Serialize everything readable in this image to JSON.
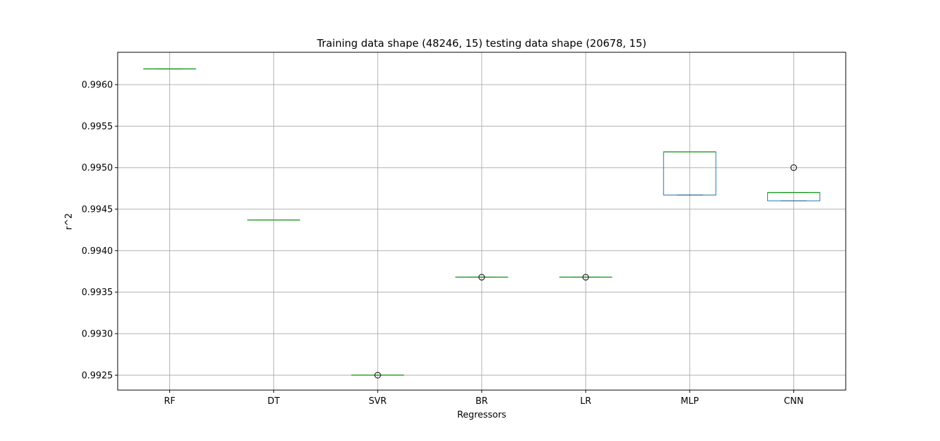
{
  "chart_data": {
    "type": "box",
    "title": "Training data shape (48246, 15) testing data shape (20678, 15)",
    "xlabel": "Regressors",
    "ylabel": "r^2",
    "ylim": [
      0.99232,
      0.99639
    ],
    "yticks": [
      0.9925,
      0.993,
      0.9935,
      0.994,
      0.9945,
      0.995,
      0.9955,
      0.996
    ],
    "ytick_labels": [
      "0.9925",
      "0.9930",
      "0.9935",
      "0.9940",
      "0.9945",
      "0.9950",
      "0.9955",
      "0.9960"
    ],
    "grid": true,
    "categories": [
      "RF",
      "DT",
      "SVR",
      "BR",
      "LR",
      "MLP",
      "CNN"
    ],
    "boxes": [
      {
        "name": "RF",
        "whislo": 0.99619,
        "q1": 0.99619,
        "med": 0.99619,
        "q3": 0.99619,
        "whishi": 0.99619,
        "fliers": []
      },
      {
        "name": "DT",
        "whislo": 0.99437,
        "q1": 0.99437,
        "med": 0.99437,
        "q3": 0.99437,
        "whishi": 0.99437,
        "fliers": []
      },
      {
        "name": "SVR",
        "whislo": 0.9925,
        "q1": 0.9925,
        "med": 0.9925,
        "q3": 0.9925,
        "whishi": 0.9925,
        "fliers": [
          0.9925
        ]
      },
      {
        "name": "BR",
        "whislo": 0.99368,
        "q1": 0.99368,
        "med": 0.99368,
        "q3": 0.99368,
        "whishi": 0.99368,
        "fliers": [
          0.99368
        ]
      },
      {
        "name": "LR",
        "whislo": 0.99368,
        "q1": 0.99368,
        "med": 0.99368,
        "q3": 0.99368,
        "whishi": 0.99368,
        "fliers": [
          0.99368
        ]
      },
      {
        "name": "MLP",
        "whislo": 0.99467,
        "q1": 0.99467,
        "med": 0.99519,
        "q3": 0.99519,
        "whishi": 0.99519,
        "fliers": []
      },
      {
        "name": "CNN",
        "whislo": 0.9946,
        "q1": 0.9946,
        "med": 0.9947,
        "q3": 0.9947,
        "whishi": 0.9947,
        "fliers": [
          0.995
        ]
      }
    ],
    "colors": {
      "box": "#1f77b4",
      "median": "#2ca02c",
      "whisker_cap": "#000000",
      "grid": "#b0b0b0",
      "axes": "#000000",
      "flier_edge": "#000000"
    }
  }
}
